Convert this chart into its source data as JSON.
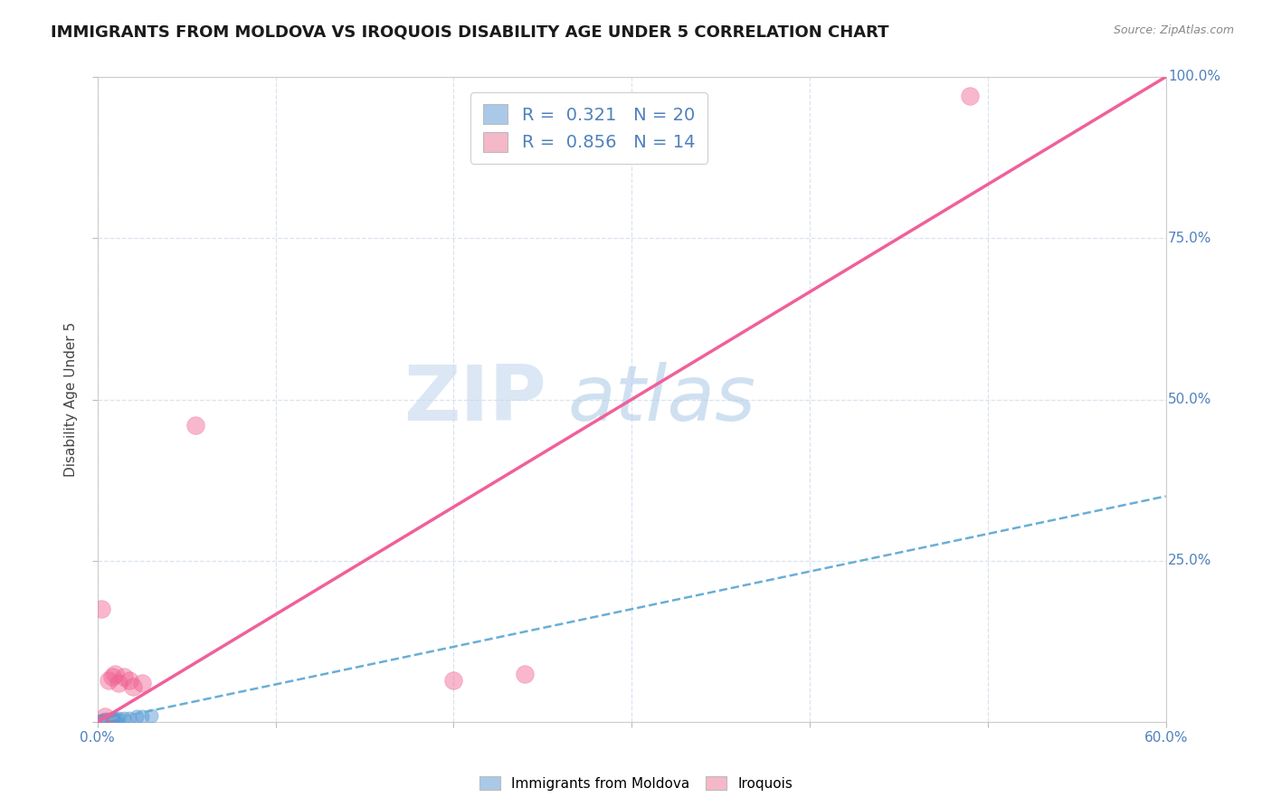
{
  "title": "IMMIGRANTS FROM MOLDOVA VS IROQUOIS DISABILITY AGE UNDER 5 CORRELATION CHART",
  "source": "Source: ZipAtlas.com",
  "ylabel": "Disability Age Under 5",
  "xlim": [
    0.0,
    0.6
  ],
  "ylim": [
    0.0,
    1.0
  ],
  "xticks": [
    0.0,
    0.1,
    0.2,
    0.3,
    0.4,
    0.5,
    0.6
  ],
  "yticks": [
    0.0,
    0.25,
    0.5,
    0.75,
    1.0
  ],
  "blue_r": 0.321,
  "blue_n": 20,
  "pink_r": 0.856,
  "pink_n": 14,
  "blue_legend_color": "#aac9e8",
  "pink_legend_color": "#f5b8c8",
  "blue_line_color": "#6aaed6",
  "pink_line_color": "#f0609a",
  "blue_scatter_color": "#5b9bd5",
  "pink_scatter_color": "#f06090",
  "legend_label_blue": "Immigrants from Moldova",
  "legend_label_pink": "Iroquois",
  "blue_points_x": [
    0.001,
    0.002,
    0.003,
    0.003,
    0.004,
    0.004,
    0.005,
    0.006,
    0.006,
    0.007,
    0.008,
    0.009,
    0.01,
    0.011,
    0.012,
    0.015,
    0.018,
    0.022,
    0.025,
    0.03
  ],
  "blue_points_y": [
    0.001,
    0.002,
    0.001,
    0.003,
    0.002,
    0.004,
    0.003,
    0.002,
    0.004,
    0.003,
    0.004,
    0.005,
    0.003,
    0.004,
    0.005,
    0.006,
    0.006,
    0.008,
    0.009,
    0.01
  ],
  "pink_points_x": [
    0.002,
    0.004,
    0.006,
    0.008,
    0.01,
    0.012,
    0.015,
    0.018,
    0.02,
    0.025,
    0.055,
    0.2,
    0.24,
    0.49
  ],
  "pink_points_y": [
    0.175,
    0.008,
    0.065,
    0.07,
    0.075,
    0.06,
    0.07,
    0.065,
    0.055,
    0.06,
    0.46,
    0.065,
    0.075,
    0.97
  ],
  "blue_line_x0": 0.0,
  "blue_line_y0": 0.0,
  "blue_line_x1": 0.6,
  "blue_line_y1": 0.35,
  "pink_line_x0": 0.0,
  "pink_line_y0": 0.0,
  "pink_line_x1": 0.6,
  "pink_line_y1": 1.0,
  "watermark_top": "ZIP",
  "watermark_bot": "atlas",
  "background_color": "#ffffff",
  "grid_color": "#d8e4f0",
  "title_fontsize": 13,
  "axis_label_fontsize": 11,
  "tick_fontsize": 11,
  "tick_color": "#4f81bd",
  "legend_fontsize": 14
}
